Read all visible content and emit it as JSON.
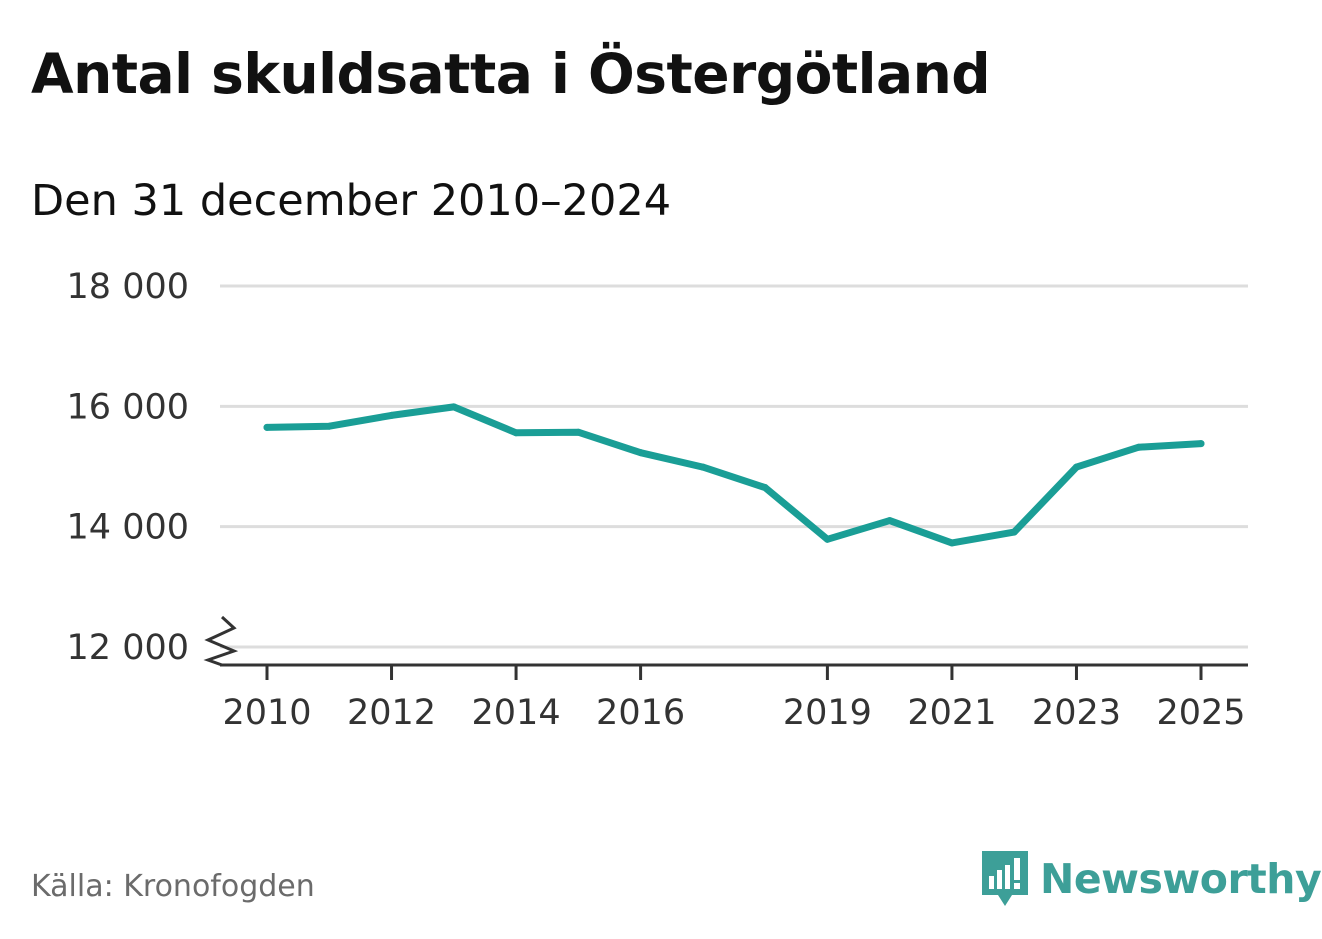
{
  "header": {
    "title": "Antal skuldsatta i Östergötland",
    "subtitle": "Den 31 december 2010–2024"
  },
  "chart_data": {
    "type": "line",
    "title": "Antal skuldsatta i Östergötland",
    "subtitle": "Den 31 december 2010–2024",
    "xlabel": "",
    "ylabel": "",
    "x": [
      2010,
      2011,
      2012,
      2013,
      2014,
      2015,
      2016,
      2017,
      2018,
      2019,
      2020,
      2021,
      2022,
      2023,
      2024,
      2025
    ],
    "values": [
      15650,
      15670,
      15850,
      15990,
      15560,
      15570,
      15230,
      14990,
      14650,
      13790,
      14100,
      13730,
      13910,
      14990,
      15320,
      15380
    ],
    "series_color": "#1a9e96",
    "xlim": [
      2010,
      2025
    ],
    "ylim": [
      12000,
      18000
    ],
    "x_ticks": [
      2010,
      2012,
      2014,
      2016,
      2019,
      2021,
      2023,
      2025
    ],
    "x_tick_labels": [
      "2010",
      "2012",
      "2014",
      "2016",
      "2019",
      "2021",
      "2023",
      "2025"
    ],
    "y_ticks": [
      12000,
      14000,
      16000,
      18000
    ],
    "y_tick_labels": [
      "12 000",
      "14 000",
      "16 000",
      "18 000"
    ],
    "axis_break": true,
    "grid": true
  },
  "footer": {
    "source": "Källa: Kronofogden",
    "brand": "Newsworthy"
  },
  "colors": {
    "brand": "#3d9f98",
    "line": "#1a9e96",
    "grid": "#dddddd",
    "axis": "#333333"
  }
}
